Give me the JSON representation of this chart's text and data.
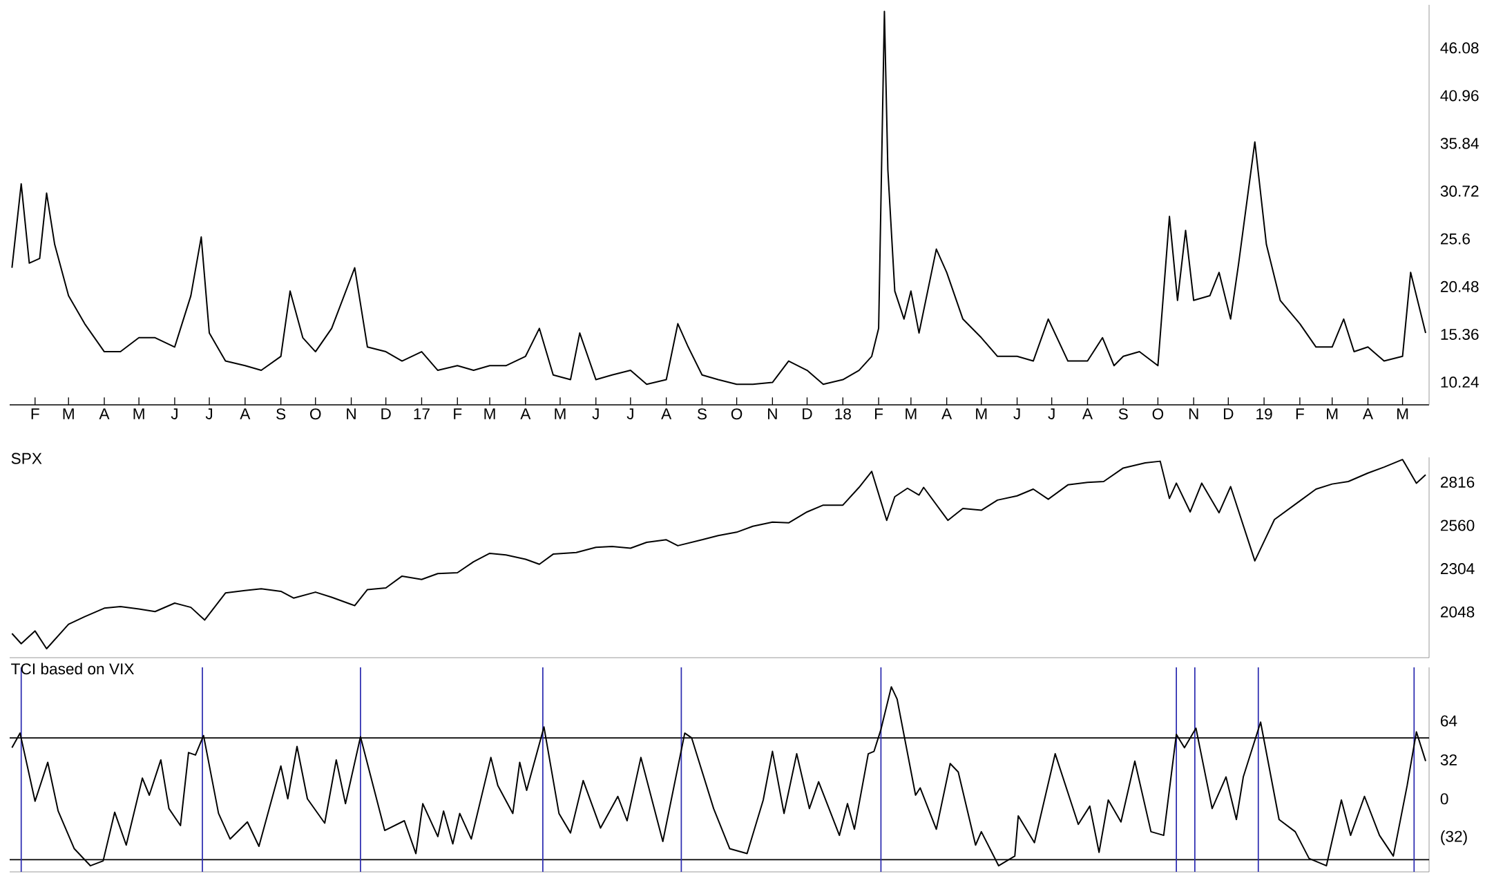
{
  "chart_data": [
    {
      "type": "line",
      "x": [
        "2016-01-12",
        "2016-01-20",
        "2016-01-27",
        "2016-02-05",
        "2016-02-11",
        "2016-02-18",
        "2016-03-01",
        "2016-03-15",
        "2016-04-01",
        "2016-04-15",
        "2016-05-01",
        "2016-05-15",
        "2016-06-01",
        "2016-06-15",
        "2016-06-24",
        "2016-07-01",
        "2016-07-15",
        "2016-08-01",
        "2016-08-15",
        "2016-09-01",
        "2016-09-09",
        "2016-09-20",
        "2016-10-01",
        "2016-10-15",
        "2016-11-04",
        "2016-11-15",
        "2016-12-01",
        "2016-12-15",
        "2017-01-01",
        "2017-01-15",
        "2017-02-01",
        "2017-02-15",
        "2017-03-01",
        "2017-03-15",
        "2017-04-01",
        "2017-04-13",
        "2017-04-25",
        "2017-05-10",
        "2017-05-18",
        "2017-06-01",
        "2017-06-15",
        "2017-07-01",
        "2017-07-15",
        "2017-08-01",
        "2017-08-11",
        "2017-08-20",
        "2017-09-01",
        "2017-09-15",
        "2017-10-01",
        "2017-10-15",
        "2017-11-01",
        "2017-11-15",
        "2017-12-01",
        "2017-12-15",
        "2018-01-01",
        "2018-01-15",
        "2018-01-26",
        "2018-02-01",
        "2018-02-06",
        "2018-02-09",
        "2018-02-15",
        "2018-02-23",
        "2018-03-01",
        "2018-03-08",
        "2018-03-23",
        "2018-04-01",
        "2018-04-15",
        "2018-05-01",
        "2018-05-15",
        "2018-06-01",
        "2018-06-15",
        "2018-06-28",
        "2018-07-15",
        "2018-08-01",
        "2018-08-14",
        "2018-08-24",
        "2018-09-01",
        "2018-09-15",
        "2018-10-01",
        "2018-10-11",
        "2018-10-18",
        "2018-10-25",
        "2018-11-01",
        "2018-11-15",
        "2018-11-23",
        "2018-12-03",
        "2018-12-10",
        "2018-12-24",
        "2019-01-03",
        "2019-01-15",
        "2019-02-01",
        "2019-02-15",
        "2019-03-01",
        "2019-03-11",
        "2019-03-20",
        "2019-04-01",
        "2019-04-15",
        "2019-05-01",
        "2019-05-08",
        "2019-05-15",
        "2019-05-21"
      ],
      "series": [
        {
          "color": "#000000",
          "values": [
            22.5,
            31.5,
            23,
            23.5,
            30.5,
            25,
            19.5,
            16.5,
            13.5,
            13.5,
            15,
            15,
            14,
            19.5,
            25.8,
            15.5,
            12.5,
            12,
            11.5,
            13,
            20,
            15,
            13.5,
            16,
            22.5,
            14,
            13.5,
            12.5,
            13.5,
            11.5,
            12,
            11.5,
            12,
            12,
            13,
            16,
            11,
            10.5,
            15.5,
            10.5,
            11,
            11.5,
            10,
            10.5,
            16.5,
            14,
            11,
            10.5,
            10,
            10,
            10.2,
            12.5,
            11.5,
            10,
            10.5,
            11.5,
            13,
            16,
            50,
            33,
            20,
            17,
            20,
            15.5,
            24.5,
            22,
            17,
            15,
            13,
            13,
            12.5,
            17,
            12.5,
            12.5,
            15,
            12,
            13,
            13.5,
            12,
            28,
            19,
            26.5,
            19,
            19.5,
            22,
            17,
            23,
            36,
            25,
            19,
            16.5,
            14,
            14,
            17,
            13.5,
            14,
            12.5,
            13,
            22,
            18.5,
            15.5
          ]
        }
      ],
      "xlim": [
        "2016-01-10",
        "2019-05-24"
      ],
      "xticks": [
        {
          "value": "2016-02-01",
          "label": "F"
        },
        {
          "value": "2016-03-01",
          "label": "M"
        },
        {
          "value": "2016-04-01",
          "label": "A"
        },
        {
          "value": "2016-05-01",
          "label": "M"
        },
        {
          "value": "2016-06-01",
          "label": "J"
        },
        {
          "value": "2016-07-01",
          "label": "J"
        },
        {
          "value": "2016-08-01",
          "label": "A"
        },
        {
          "value": "2016-09-01",
          "label": "S"
        },
        {
          "value": "2016-10-01",
          "label": "O"
        },
        {
          "value": "2016-11-01",
          "label": "N"
        },
        {
          "value": "2016-12-01",
          "label": "D"
        },
        {
          "value": "2017-01-01",
          "label": "17"
        },
        {
          "value": "2017-02-01",
          "label": "F"
        },
        {
          "value": "2017-03-01",
          "label": "M"
        },
        {
          "value": "2017-04-01",
          "label": "A"
        },
        {
          "value": "2017-05-01",
          "label": "M"
        },
        {
          "value": "2017-06-01",
          "label": "J"
        },
        {
          "value": "2017-07-01",
          "label": "J"
        },
        {
          "value": "2017-08-01",
          "label": "A"
        },
        {
          "value": "2017-09-01",
          "label": "S"
        },
        {
          "value": "2017-10-01",
          "label": "O"
        },
        {
          "value": "2017-11-01",
          "label": "N"
        },
        {
          "value": "2017-12-01",
          "label": "D"
        },
        {
          "value": "2018-01-01",
          "label": "18"
        },
        {
          "value": "2018-02-01",
          "label": "F"
        },
        {
          "value": "2018-03-01",
          "label": "M"
        },
        {
          "value": "2018-04-01",
          "label": "A"
        },
        {
          "value": "2018-05-01",
          "label": "M"
        },
        {
          "value": "2018-06-01",
          "label": "J"
        },
        {
          "value": "2018-07-01",
          "label": "J"
        },
        {
          "value": "2018-08-01",
          "label": "A"
        },
        {
          "value": "2018-09-01",
          "label": "S"
        },
        {
          "value": "2018-10-01",
          "label": "O"
        },
        {
          "value": "2018-11-01",
          "label": "N"
        },
        {
          "value": "2018-12-01",
          "label": "D"
        },
        {
          "value": "2019-01-01",
          "label": "19"
        },
        {
          "value": "2019-02-01",
          "label": "F"
        },
        {
          "value": "2019-03-01",
          "label": "M"
        },
        {
          "value": "2019-04-01",
          "label": "A"
        },
        {
          "value": "2019-05-01",
          "label": "M"
        }
      ],
      "ylim": [
        7.8,
        50.7
      ],
      "yticks": [
        10.24,
        15.36,
        20.48,
        25.6,
        30.72,
        35.84,
        40.96,
        46.08
      ]
    },
    {
      "type": "line",
      "title": "SPX",
      "x": [
        "2016-01-12",
        "2016-01-20",
        "2016-02-01",
        "2016-02-11",
        "2016-03-01",
        "2016-03-15",
        "2016-04-01",
        "2016-04-15",
        "2016-05-01",
        "2016-05-15",
        "2016-06-01",
        "2016-06-15",
        "2016-06-27",
        "2016-07-15",
        "2016-08-01",
        "2016-08-15",
        "2016-09-01",
        "2016-09-12",
        "2016-10-01",
        "2016-10-15",
        "2016-11-04",
        "2016-11-15",
        "2016-12-01",
        "2016-12-15",
        "2017-01-01",
        "2017-01-15",
        "2017-02-01",
        "2017-02-15",
        "2017-03-01",
        "2017-03-15",
        "2017-04-01",
        "2017-04-13",
        "2017-04-25",
        "2017-05-15",
        "2017-06-01",
        "2017-06-15",
        "2017-07-01",
        "2017-07-15",
        "2017-08-01",
        "2017-08-11",
        "2017-09-01",
        "2017-09-15",
        "2017-10-01",
        "2017-10-15",
        "2017-11-01",
        "2017-11-15",
        "2017-12-01",
        "2017-12-15",
        "2018-01-01",
        "2018-01-15",
        "2018-01-26",
        "2018-02-08",
        "2018-02-15",
        "2018-02-26",
        "2018-03-08",
        "2018-03-12",
        "2018-04-02",
        "2018-04-15",
        "2018-05-01",
        "2018-05-15",
        "2018-06-01",
        "2018-06-15",
        "2018-06-28",
        "2018-07-15",
        "2018-08-01",
        "2018-08-15",
        "2018-09-01",
        "2018-09-20",
        "2018-10-03",
        "2018-10-11",
        "2018-10-17",
        "2018-10-29",
        "2018-11-08",
        "2018-11-23",
        "2018-12-03",
        "2018-12-24",
        "2019-01-10",
        "2019-02-01",
        "2019-02-15",
        "2019-03-01",
        "2019-03-15",
        "2019-04-01",
        "2019-04-15",
        "2019-05-01",
        "2019-05-13",
        "2019-05-21"
      ],
      "series": [
        {
          "color": "#000000",
          "values": [
            1920,
            1860,
            1935,
            1830,
            1975,
            2020,
            2070,
            2080,
            2065,
            2050,
            2100,
            2075,
            2000,
            2160,
            2175,
            2185,
            2170,
            2130,
            2165,
            2135,
            2085,
            2180,
            2190,
            2260,
            2240,
            2275,
            2280,
            2345,
            2395,
            2385,
            2360,
            2330,
            2390,
            2400,
            2430,
            2435,
            2425,
            2460,
            2475,
            2440,
            2475,
            2500,
            2520,
            2555,
            2580,
            2575,
            2640,
            2680,
            2680,
            2785,
            2880,
            2590,
            2730,
            2780,
            2740,
            2785,
            2590,
            2660,
            2650,
            2710,
            2735,
            2775,
            2715,
            2800,
            2815,
            2820,
            2900,
            2930,
            2940,
            2720,
            2810,
            2640,
            2810,
            2635,
            2790,
            2350,
            2595,
            2705,
            2775,
            2805,
            2820,
            2870,
            2905,
            2950,
            2810,
            2860
          ]
        }
      ],
      "xlim": [
        "2016-01-10",
        "2019-05-24"
      ],
      "ylim": [
        1777,
        2963
      ],
      "yticks": [
        2048,
        2304,
        2560,
        2816
      ],
      "tick_labels": "y"
    },
    {
      "type": "line",
      "title": "TCI based on VIX",
      "x": [
        "2016-01-12",
        "2016-01-19",
        "2016-02-01",
        "2016-02-12",
        "2016-02-21",
        "2016-03-06",
        "2016-03-20",
        "2016-03-31",
        "2016-04-10",
        "2016-04-20",
        "2016-05-04",
        "2016-05-10",
        "2016-05-20",
        "2016-05-27",
        "2016-06-06",
        "2016-06-13",
        "2016-06-19",
        "2016-06-26",
        "2016-07-09",
        "2016-07-19",
        "2016-08-03",
        "2016-08-13",
        "2016-09-01",
        "2016-09-07",
        "2016-09-15",
        "2016-09-24",
        "2016-10-09",
        "2016-10-19",
        "2016-10-27",
        "2016-11-09",
        "2016-11-30",
        "2016-12-17",
        "2016-12-27",
        "2017-01-02",
        "2017-01-15",
        "2017-01-20",
        "2017-01-28",
        "2017-02-03",
        "2017-02-13",
        "2017-03-02",
        "2017-03-08",
        "2017-03-21",
        "2017-03-27",
        "2017-04-02",
        "2017-04-17",
        "2017-04-30",
        "2017-05-10",
        "2017-05-21",
        "2017-06-05",
        "2017-06-20",
        "2017-06-28",
        "2017-07-10",
        "2017-07-29",
        "2017-08-17",
        "2017-08-23",
        "2017-09-11",
        "2017-09-25",
        "2017-10-10",
        "2017-10-24",
        "2017-11-01",
        "2017-11-11",
        "2017-11-22",
        "2017-12-03",
        "2017-12-11",
        "2017-12-29",
        "2018-01-05",
        "2018-01-11",
        "2018-01-23",
        "2018-01-28",
        "2018-02-03",
        "2018-02-12",
        "2018-02-17",
        "2018-03-05",
        "2018-03-09",
        "2018-03-23",
        "2018-04-04",
        "2018-04-11",
        "2018-04-26",
        "2018-05-01",
        "2018-05-16",
        "2018-05-30",
        "2018-06-02",
        "2018-06-16",
        "2018-07-04",
        "2018-07-24",
        "2018-08-03",
        "2018-08-11",
        "2018-08-19",
        "2018-08-30",
        "2018-09-11",
        "2018-09-25",
        "2018-10-06",
        "2018-10-17",
        "2018-10-24",
        "2018-11-03",
        "2018-11-17",
        "2018-11-29",
        "2018-12-08",
        "2018-12-14",
        "2018-12-29",
        "2019-01-14",
        "2019-01-28",
        "2019-02-09",
        "2019-02-24",
        "2019-03-09",
        "2019-03-17",
        "2019-03-29",
        "2019-04-11",
        "2019-04-23",
        "2019-05-05",
        "2019-05-13",
        "2019-05-21"
      ],
      "series": [
        {
          "color": "#000000",
          "values": [
            42,
            54,
            -2,
            30,
            -10,
            -41,
            -55,
            -51,
            -11,
            -38,
            17,
            3,
            32,
            -8,
            -22,
            38,
            36,
            52,
            -12,
            -33,
            -19,
            -39,
            27,
            0,
            43,
            0,
            -20,
            32,
            -4,
            51,
            -26,
            -18,
            -45,
            -4,
            -31,
            -10,
            -37,
            -12,
            -33,
            34,
            11,
            -12,
            30,
            7,
            59,
            -12,
            -28,
            15,
            -24,
            2,
            -18,
            34,
            -35,
            54,
            50,
            -8,
            -41,
            -45,
            -1,
            39,
            -12,
            37,
            -8,
            14,
            -30,
            -4,
            -25,
            37,
            39,
            57,
            92,
            82,
            3,
            9,
            -25,
            29,
            22,
            -38,
            -27,
            -55,
            -47,
            -14,
            -36,
            37,
            -21,
            -6,
            -44,
            -1,
            -19,
            31,
            -27,
            -30,
            53,
            42,
            58,
            -8,
            18,
            -17,
            18,
            63,
            -17,
            -27,
            -49,
            -55,
            -1,
            -30,
            2,
            -30,
            -47,
            11,
            55,
            31
          ]
        }
      ],
      "xlim": [
        "2016-01-10",
        "2019-05-24"
      ],
      "ylim": [
        -60,
        108
      ],
      "yticks": [
        64,
        32,
        0,
        {
          "value": -32,
          "label": "(32)"
        }
      ],
      "tick_labels": "y",
      "ref_lines": [
        {
          "axis": "y",
          "value": 50,
          "color": "#000000"
        },
        {
          "axis": "y",
          "value": -50,
          "color": "#000000"
        },
        {
          "axis": "x",
          "value": "2016-01-20",
          "color": "#2b2bb0"
        },
        {
          "axis": "x",
          "value": "2016-06-25",
          "color": "#2b2bb0"
        },
        {
          "axis": "x",
          "value": "2016-11-09",
          "color": "#2b2bb0"
        },
        {
          "axis": "x",
          "value": "2017-04-16",
          "color": "#2b2bb0"
        },
        {
          "axis": "x",
          "value": "2017-08-14",
          "color": "#2b2bb0"
        },
        {
          "axis": "x",
          "value": "2018-02-03",
          "color": "#2b2bb0"
        },
        {
          "axis": "x",
          "value": "2018-10-17",
          "color": "#2b2bb0"
        },
        {
          "axis": "x",
          "value": "2018-11-02",
          "color": "#2b2bb0"
        },
        {
          "axis": "x",
          "value": "2018-12-27",
          "color": "#2b2bb0"
        },
        {
          "axis": "x",
          "value": "2019-05-11",
          "color": "#2b2bb0"
        }
      ]
    }
  ]
}
